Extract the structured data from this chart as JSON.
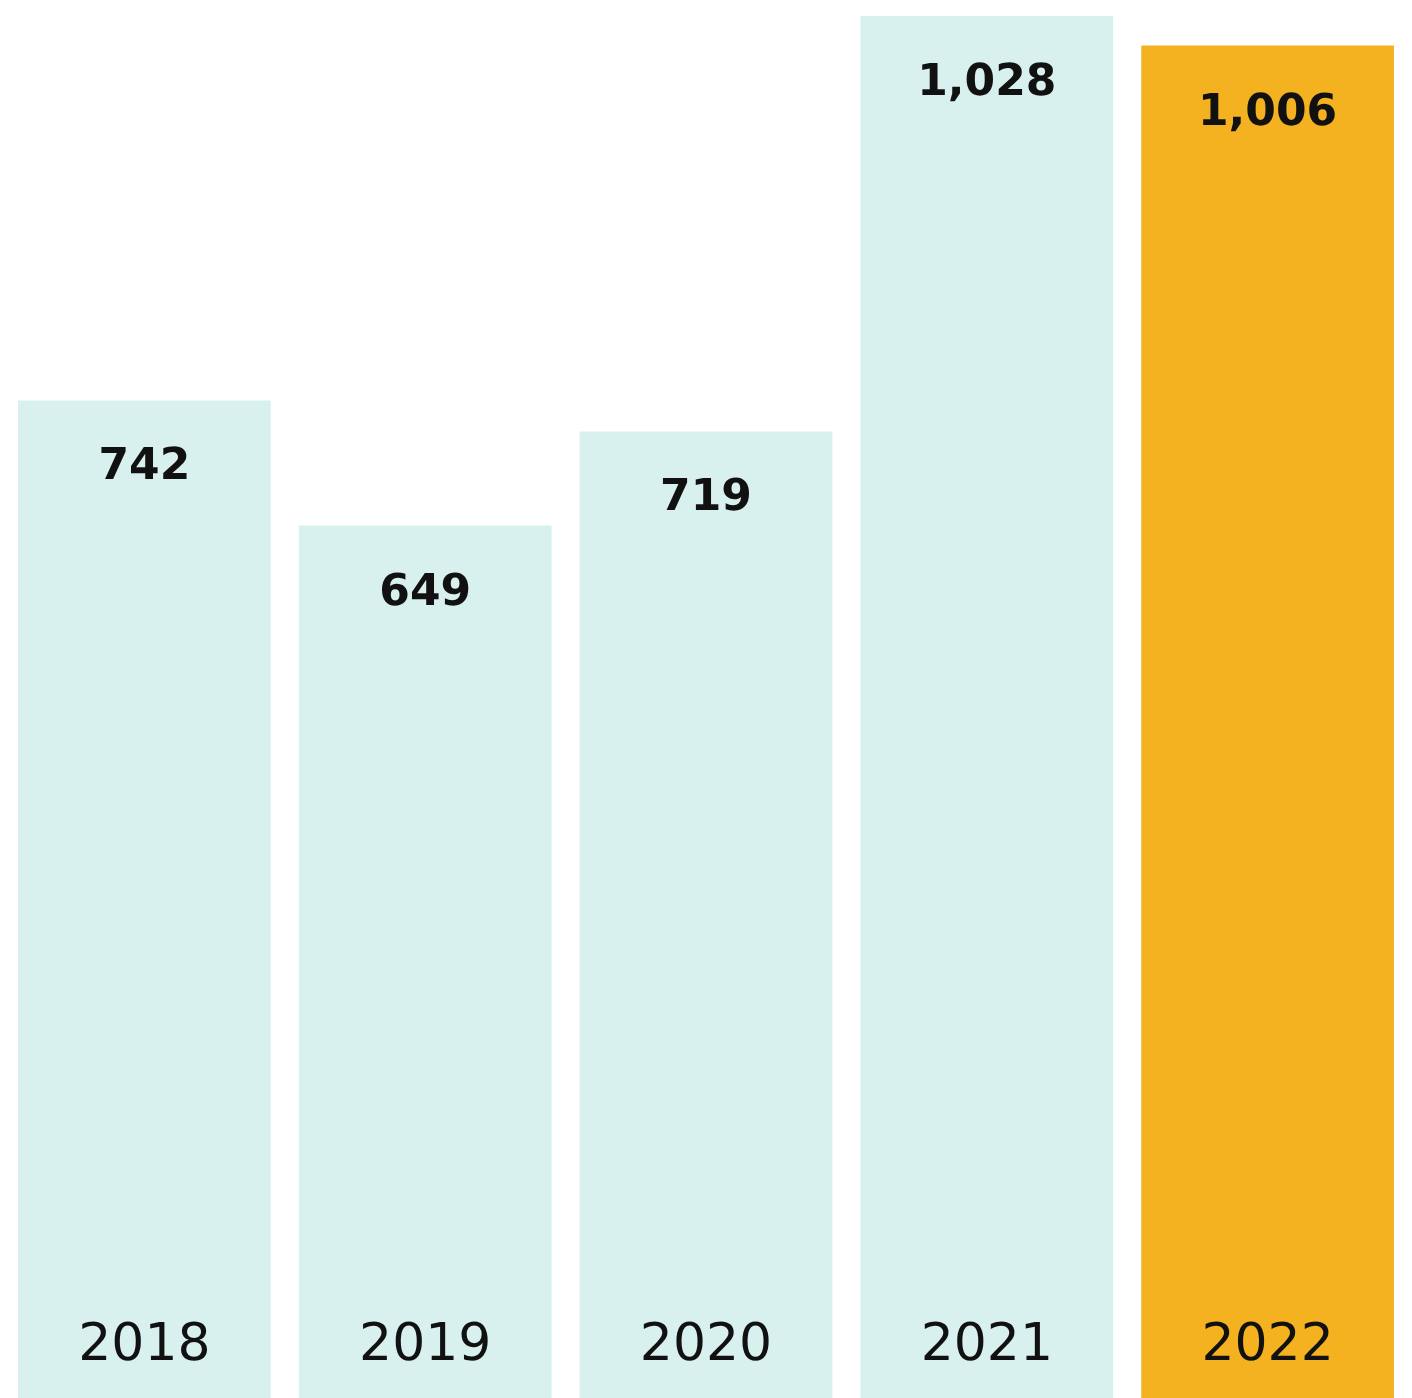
{
  "chart_data": {
    "type": "bar",
    "categories": [
      "2018",
      "2019",
      "2020",
      "2021",
      "2022"
    ],
    "values": [
      742,
      649,
      719,
      1028,
      1006
    ],
    "value_labels": [
      "742",
      "649",
      "719",
      "1,028",
      "1,006"
    ],
    "colors": [
      "#d8f1ee",
      "#d8f1ee",
      "#d8f1ee",
      "#d8f1ee",
      "#f4b120"
    ]
  }
}
